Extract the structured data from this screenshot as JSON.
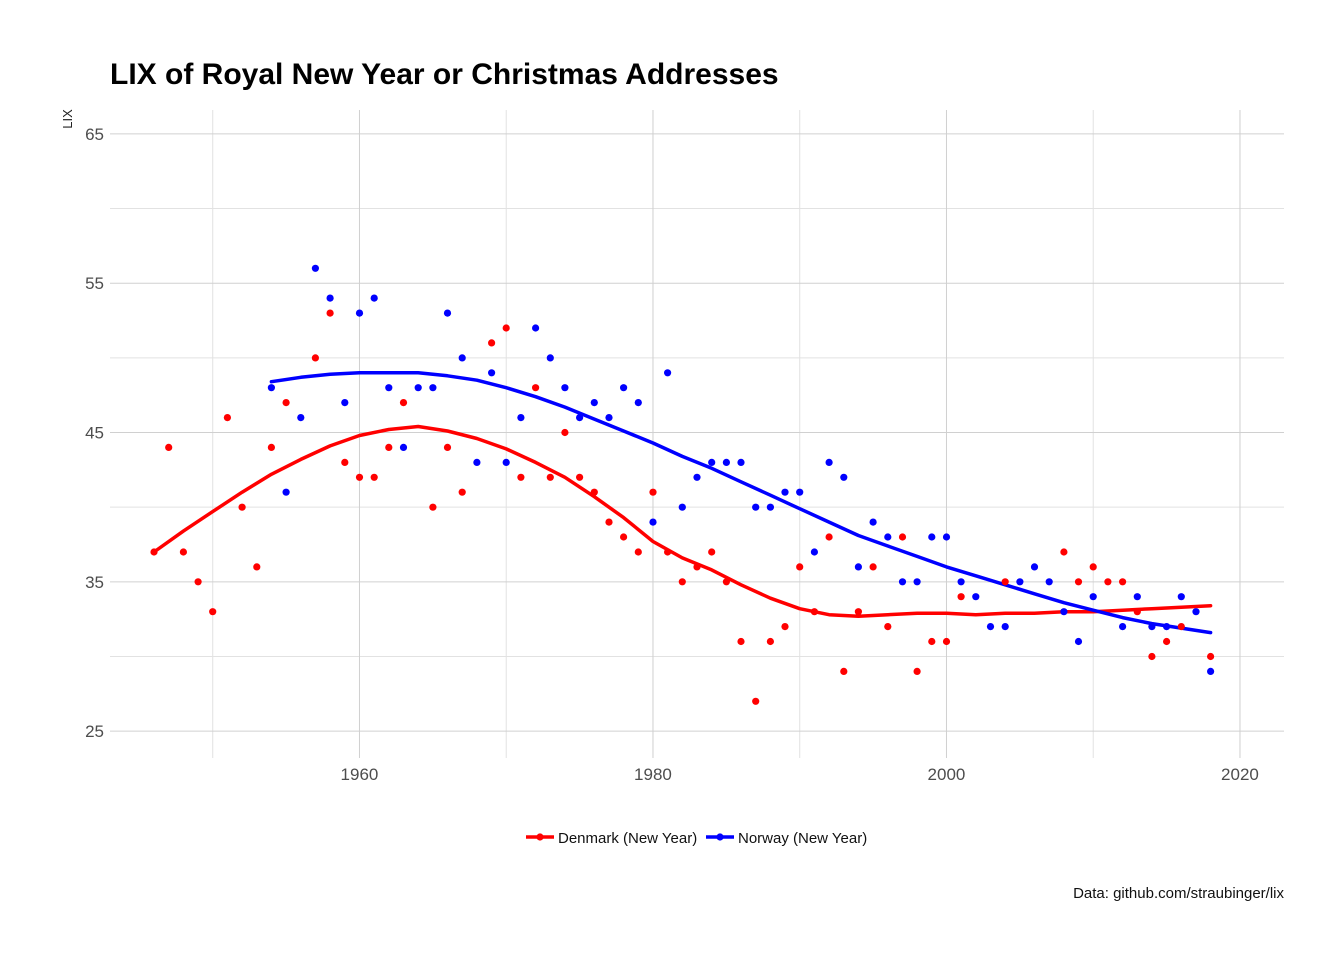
{
  "chart_data": {
    "type": "scatter",
    "title": "LIX of Royal New Year or Christmas Addresses",
    "xlabel": "",
    "ylabel": "LIX",
    "xlim": [
      1943,
      2023
    ],
    "ylim": [
      23.2,
      66.6
    ],
    "x_ticks": [
      1960,
      1980,
      2000,
      2020
    ],
    "y_ticks": [
      25,
      35,
      45,
      55,
      65
    ],
    "x_tick_labels": [
      "1960",
      "1980",
      "2000",
      "2020"
    ],
    "y_tick_labels": [
      "25",
      "35",
      "45",
      "55",
      "65"
    ],
    "grid": true,
    "legend_position": "bottom",
    "caption": "Data: github.com/straubinger/lix",
    "series": [
      {
        "name": "Denmark (New Year)",
        "color": "#ff0000",
        "points": [
          [
            1946,
            37
          ],
          [
            1947,
            44
          ],
          [
            1948,
            37
          ],
          [
            1949,
            35
          ],
          [
            1950,
            33
          ],
          [
            1951,
            46
          ],
          [
            1952,
            40
          ],
          [
            1953,
            36
          ],
          [
            1954,
            44
          ],
          [
            1955,
            47
          ],
          [
            1957,
            50
          ],
          [
            1958,
            53
          ],
          [
            1959,
            43
          ],
          [
            1960,
            42
          ],
          [
            1961,
            42
          ],
          [
            1962,
            44
          ],
          [
            1963,
            47
          ],
          [
            1965,
            40
          ],
          [
            1966,
            44
          ],
          [
            1967,
            41
          ],
          [
            1969,
            51
          ],
          [
            1970,
            52
          ],
          [
            1971,
            42
          ],
          [
            1972,
            48
          ],
          [
            1973,
            42
          ],
          [
            1974,
            45
          ],
          [
            1975,
            42
          ],
          [
            1976,
            41
          ],
          [
            1977,
            39
          ],
          [
            1978,
            38
          ],
          [
            1979,
            37
          ],
          [
            1980,
            41
          ],
          [
            1981,
            37
          ],
          [
            1982,
            35
          ],
          [
            1983,
            36
          ],
          [
            1984,
            37
          ],
          [
            1985,
            35
          ],
          [
            1986,
            31
          ],
          [
            1987,
            27
          ],
          [
            1988,
            31
          ],
          [
            1989,
            32
          ],
          [
            1990,
            36
          ],
          [
            1991,
            33
          ],
          [
            1992,
            38
          ],
          [
            1993,
            29
          ],
          [
            1994,
            33
          ],
          [
            1995,
            36
          ],
          [
            1996,
            32
          ],
          [
            1997,
            38
          ],
          [
            1998,
            29
          ],
          [
            1999,
            31
          ],
          [
            2000,
            31
          ],
          [
            2001,
            34
          ],
          [
            2004,
            35
          ],
          [
            2008,
            37
          ],
          [
            2009,
            35
          ],
          [
            2010,
            36
          ],
          [
            2011,
            35
          ],
          [
            2012,
            35
          ],
          [
            2013,
            33
          ],
          [
            2014,
            30
          ],
          [
            2015,
            31
          ],
          [
            2016,
            32
          ],
          [
            2018,
            30
          ]
        ],
        "smooth": [
          [
            1946,
            37.0
          ],
          [
            1948,
            38.4
          ],
          [
            1950,
            39.7
          ],
          [
            1952,
            41.0
          ],
          [
            1954,
            42.2
          ],
          [
            1956,
            43.2
          ],
          [
            1958,
            44.1
          ],
          [
            1960,
            44.8
          ],
          [
            1962,
            45.2
          ],
          [
            1964,
            45.4
          ],
          [
            1966,
            45.1
          ],
          [
            1968,
            44.6
          ],
          [
            1970,
            43.9
          ],
          [
            1972,
            43.0
          ],
          [
            1974,
            42.0
          ],
          [
            1976,
            40.7
          ],
          [
            1978,
            39.3
          ],
          [
            1980,
            37.7
          ],
          [
            1982,
            36.6
          ],
          [
            1984,
            35.8
          ],
          [
            1986,
            34.8
          ],
          [
            1988,
            33.9
          ],
          [
            1990,
            33.2
          ],
          [
            1992,
            32.8
          ],
          [
            1994,
            32.7
          ],
          [
            1996,
            32.8
          ],
          [
            1998,
            32.9
          ],
          [
            2000,
            32.9
          ],
          [
            2002,
            32.8
          ],
          [
            2004,
            32.9
          ],
          [
            2006,
            32.9
          ],
          [
            2008,
            33.0
          ],
          [
            2010,
            33.0
          ],
          [
            2012,
            33.1
          ],
          [
            2014,
            33.2
          ],
          [
            2016,
            33.3
          ],
          [
            2018,
            33.4
          ]
        ]
      },
      {
        "name": "Norway (New Year)",
        "color": "#0000ff",
        "points": [
          [
            1954,
            48
          ],
          [
            1955,
            41
          ],
          [
            1956,
            46
          ],
          [
            1957,
            56
          ],
          [
            1958,
            54
          ],
          [
            1959,
            47
          ],
          [
            1960,
            53
          ],
          [
            1961,
            54
          ],
          [
            1962,
            48
          ],
          [
            1963,
            44
          ],
          [
            1964,
            48
          ],
          [
            1965,
            48
          ],
          [
            1966,
            53
          ],
          [
            1967,
            50
          ],
          [
            1968,
            43
          ],
          [
            1969,
            49
          ],
          [
            1970,
            43
          ],
          [
            1971,
            46
          ],
          [
            1972,
            52
          ],
          [
            1973,
            50
          ],
          [
            1974,
            48
          ],
          [
            1975,
            46
          ],
          [
            1976,
            47
          ],
          [
            1977,
            46
          ],
          [
            1978,
            48
          ],
          [
            1979,
            47
          ],
          [
            1980,
            39
          ],
          [
            1981,
            49
          ],
          [
            1982,
            40
          ],
          [
            1983,
            42
          ],
          [
            1984,
            43
          ],
          [
            1985,
            43
          ],
          [
            1986,
            43
          ],
          [
            1987,
            40
          ],
          [
            1988,
            40
          ],
          [
            1989,
            41
          ],
          [
            1990,
            41
          ],
          [
            1991,
            37
          ],
          [
            1992,
            43
          ],
          [
            1993,
            42
          ],
          [
            1994,
            36
          ],
          [
            1995,
            39
          ],
          [
            1996,
            38
          ],
          [
            1997,
            35
          ],
          [
            1998,
            35
          ],
          [
            1999,
            38
          ],
          [
            2000,
            38
          ],
          [
            2001,
            35
          ],
          [
            2002,
            34
          ],
          [
            2003,
            32
          ],
          [
            2004,
            32
          ],
          [
            2005,
            35
          ],
          [
            2006,
            36
          ],
          [
            2007,
            35
          ],
          [
            2008,
            33
          ],
          [
            2009,
            31
          ],
          [
            2010,
            34
          ],
          [
            2012,
            32
          ],
          [
            2013,
            34
          ],
          [
            2014,
            32
          ],
          [
            2015,
            32
          ],
          [
            2016,
            34
          ],
          [
            2017,
            33
          ],
          [
            2018,
            29
          ]
        ],
        "smooth": [
          [
            1954,
            48.4
          ],
          [
            1956,
            48.7
          ],
          [
            1958,
            48.9
          ],
          [
            1960,
            49.0
          ],
          [
            1962,
            49.0
          ],
          [
            1964,
            49.0
          ],
          [
            1966,
            48.8
          ],
          [
            1968,
            48.5
          ],
          [
            1970,
            48.0
          ],
          [
            1972,
            47.4
          ],
          [
            1974,
            46.7
          ],
          [
            1976,
            45.9
          ],
          [
            1978,
            45.1
          ],
          [
            1980,
            44.3
          ],
          [
            1982,
            43.4
          ],
          [
            1984,
            42.6
          ],
          [
            1986,
            41.7
          ],
          [
            1988,
            40.8
          ],
          [
            1990,
            39.9
          ],
          [
            1992,
            39.0
          ],
          [
            1994,
            38.1
          ],
          [
            1996,
            37.4
          ],
          [
            1998,
            36.7
          ],
          [
            2000,
            36.0
          ],
          [
            2002,
            35.4
          ],
          [
            2004,
            34.8
          ],
          [
            2006,
            34.2
          ],
          [
            2008,
            33.6
          ],
          [
            2010,
            33.1
          ],
          [
            2012,
            32.6
          ],
          [
            2014,
            32.2
          ],
          [
            2016,
            31.9
          ],
          [
            2018,
            31.6
          ]
        ]
      }
    ]
  }
}
